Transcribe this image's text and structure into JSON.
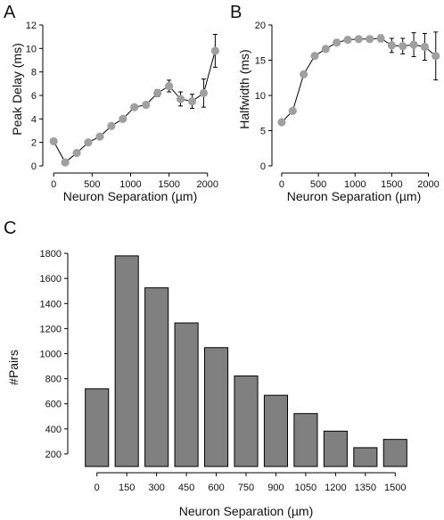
{
  "chart_data": [
    {
      "panel": "A",
      "type": "line",
      "xlabel": "Neuron Separation (µm)",
      "ylabel": "Peak Delay (ms)",
      "xlim": [
        -60,
        2200
      ],
      "ylim": [
        0,
        12
      ],
      "xticks": [
        0,
        500,
        1000,
        1500,
        2000
      ],
      "yticks": [
        0,
        2,
        4,
        6,
        8,
        10,
        12
      ],
      "marker_color": "#a0a0a0",
      "line_color": "#000000",
      "grid": false,
      "x": [
        0,
        150,
        300,
        450,
        600,
        750,
        900,
        1050,
        1200,
        1350,
        1500,
        1650,
        1800,
        1950,
        2100
      ],
      "y": [
        2.1,
        0.3,
        1.1,
        2.0,
        2.5,
        3.4,
        4.0,
        5.0,
        5.2,
        6.2,
        6.8,
        5.7,
        5.5,
        6.2,
        9.8
      ],
      "err": [
        0,
        0,
        0,
        0,
        0,
        0,
        0,
        0,
        0,
        0.3,
        0.5,
        0.6,
        0.6,
        1.2,
        1.4
      ]
    },
    {
      "panel": "B",
      "type": "line",
      "xlabel": "Neuron Separation (µm)",
      "ylabel": "Halfwidth (ms)",
      "xlim": [
        -60,
        2200
      ],
      "ylim": [
        0,
        20
      ],
      "xticks": [
        0,
        500,
        1000,
        1500,
        2000
      ],
      "yticks": [
        0,
        5,
        10,
        15,
        20
      ],
      "marker_color": "#a0a0a0",
      "line_color": "#000000",
      "grid": false,
      "x": [
        0,
        150,
        300,
        450,
        600,
        750,
        900,
        1050,
        1200,
        1350,
        1500,
        1650,
        1800,
        1950,
        2100
      ],
      "y": [
        6.2,
        7.8,
        13.0,
        15.6,
        16.6,
        17.5,
        17.9,
        18.0,
        18.0,
        18.1,
        17.1,
        17.0,
        17.2,
        16.9,
        15.6
      ],
      "err": [
        0,
        0,
        0,
        0,
        0,
        0,
        0,
        0,
        0.1,
        0.5,
        1.0,
        1.1,
        1.7,
        1.9,
        3.4
      ]
    },
    {
      "panel": "C",
      "type": "bar",
      "xlabel": "Neuron Separation (µm)",
      "ylabel": "#Pairs",
      "categories": [
        "0",
        "150",
        "300",
        "450",
        "600",
        "750",
        "900",
        "1050",
        "1200",
        "1350",
        "1500"
      ],
      "values": [
        720,
        1780,
        1525,
        1245,
        1048,
        822,
        668,
        522,
        382,
        250,
        316
      ],
      "ylim": [
        100,
        1900
      ],
      "yticks": [
        200,
        400,
        600,
        800,
        1000,
        1200,
        1400,
        1600,
        1800
      ],
      "bar_color": "#808080",
      "bar_edge": "#000000",
      "grid": false
    }
  ]
}
